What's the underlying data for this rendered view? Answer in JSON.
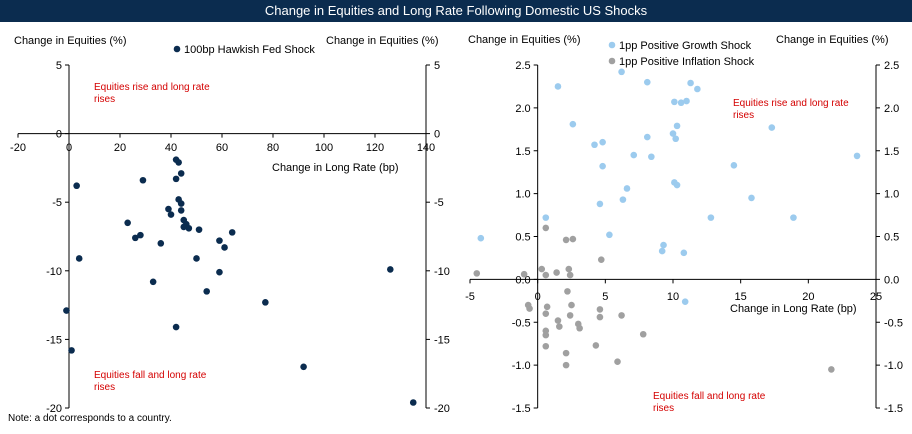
{
  "title": "Change in Equities and Long Rate Following Domestic US Shocks",
  "note": "Note: a dot corresponds to a country.",
  "colors": {
    "banner": "#0b2c4f",
    "hawkish": "#0b2c4f",
    "growth": "#9ccbee",
    "inflation": "#a0a0a0",
    "annotation": "#d40000"
  },
  "chart_data": [
    {
      "type": "scatter",
      "left_axis_title": "Change in Equities (%)",
      "right_axis_title": "Change in Equities (%)",
      "xlabel": "Change in Long Rate (bp)",
      "xlim": [
        -20,
        140
      ],
      "ylim": [
        -20,
        5
      ],
      "x_ticks": [
        -20,
        0,
        20,
        40,
        60,
        80,
        100,
        120,
        140
      ],
      "y_ticks": [
        5,
        0,
        -5,
        -10,
        -15,
        -20
      ],
      "annotations": [
        "Equities rise and long rate rises",
        "Equities fall and long rate rises"
      ],
      "series": [
        {
          "name": "100bp Hawkish Fed Shock",
          "color": "#0b2c4f",
          "points": [
            [
              42,
              -1.9
            ],
            [
              43,
              -2.1
            ],
            [
              44,
              -2.9
            ],
            [
              29,
              -3.4
            ],
            [
              42,
              -3.3
            ],
            [
              3,
              -3.8
            ],
            [
              43,
              -4.8
            ],
            [
              44,
              -5.1
            ],
            [
              44,
              -5.6
            ],
            [
              39,
              -5.5
            ],
            [
              40,
              -5.9
            ],
            [
              45,
              -6.3
            ],
            [
              46,
              -6.6
            ],
            [
              47,
              -6.9
            ],
            [
              45,
              -6.8
            ],
            [
              51,
              -7.0
            ],
            [
              23,
              -6.5
            ],
            [
              64,
              -7.2
            ],
            [
              28,
              -7.4
            ],
            [
              26,
              -7.6
            ],
            [
              59,
              -7.8
            ],
            [
              36,
              -8.0
            ],
            [
              61,
              -8.3
            ],
            [
              4,
              -9.1
            ],
            [
              50,
              -9.1
            ],
            [
              59,
              -10.1
            ],
            [
              33,
              -10.8
            ],
            [
              126,
              -9.9
            ],
            [
              54,
              -11.5
            ],
            [
              77,
              -12.3
            ],
            [
              -1,
              -12.9
            ],
            [
              42,
              -14.1
            ],
            [
              1,
              -15.8
            ],
            [
              92,
              -17.0
            ],
            [
              135,
              -19.6
            ]
          ]
        }
      ]
    },
    {
      "type": "scatter",
      "left_axis_title": "Change in Equities (%)",
      "right_axis_title": "Change in Equities (%)",
      "xlabel": "Change in Long Rate (bp)",
      "xlim": [
        -5,
        25
      ],
      "ylim": [
        -1.5,
        2.5
      ],
      "x_ticks": [
        -5,
        0,
        5,
        10,
        15,
        20,
        25
      ],
      "y_ticks": [
        "2.5",
        "2.0",
        "1.5",
        "1.0",
        "0.5",
        "0.0",
        "-0.5",
        "-1.0",
        "-1.5"
      ],
      "annotations": [
        "Equities rise and long rate rises",
        "Equities fall and long rate rises"
      ],
      "series": [
        {
          "name": "1pp Positive Growth Shock",
          "color": "#9ccbee",
          "points": [
            [
              -4.2,
              0.48
            ],
            [
              0.6,
              0.72
            ],
            [
              1.5,
              2.25
            ],
            [
              2.6,
              1.81
            ],
            [
              4.2,
              1.57
            ],
            [
              4.8,
              1.6
            ],
            [
              4.8,
              1.32
            ],
            [
              4.6,
              0.88
            ],
            [
              5.3,
              0.52
            ],
            [
              6.2,
              2.42
            ],
            [
              6.3,
              0.93
            ],
            [
              6.6,
              1.06
            ],
            [
              7.1,
              1.45
            ],
            [
              8.1,
              2.3
            ],
            [
              8.4,
              1.43
            ],
            [
              8.1,
              1.66
            ],
            [
              9.3,
              0.4
            ],
            [
              9.2,
              0.33
            ],
            [
              10.1,
              2.07
            ],
            [
              10.0,
              1.7
            ],
            [
              10.2,
              1.64
            ],
            [
              10.3,
              1.79
            ],
            [
              10.6,
              2.06
            ],
            [
              11.0,
              2.08
            ],
            [
              11.3,
              2.29
            ],
            [
              11.8,
              2.22
            ],
            [
              10.1,
              1.13
            ],
            [
              10.3,
              1.1
            ],
            [
              10.8,
              0.31
            ],
            [
              10.9,
              -0.26
            ],
            [
              12.8,
              0.72
            ],
            [
              14.5,
              1.33
            ],
            [
              15.8,
              0.95
            ],
            [
              17.3,
              1.77
            ],
            [
              18.9,
              0.72
            ],
            [
              23.6,
              1.44
            ]
          ]
        },
        {
          "name": "1pp Positive Inflation Shock",
          "color": "#a0a0a0",
          "points": [
            [
              -4.5,
              0.07
            ],
            [
              -1.0,
              0.06
            ],
            [
              0.3,
              0.12
            ],
            [
              0.6,
              0.05
            ],
            [
              0.6,
              0.6
            ],
            [
              1.4,
              0.08
            ],
            [
              2.1,
              0.46
            ],
            [
              2.6,
              0.47
            ],
            [
              2.3,
              0.12
            ],
            [
              2.4,
              0.05
            ],
            [
              2.2,
              -0.14
            ],
            [
              4.7,
              0.23
            ],
            [
              -0.7,
              -0.3
            ],
            [
              -0.6,
              -0.34
            ],
            [
              0.7,
              -0.32
            ],
            [
              0.6,
              -0.4
            ],
            [
              0.6,
              -0.6
            ],
            [
              0.6,
              -0.65
            ],
            [
              1.6,
              -0.55
            ],
            [
              1.5,
              -0.48
            ],
            [
              2.4,
              -0.42
            ],
            [
              2.5,
              -0.3
            ],
            [
              3.0,
              -0.52
            ],
            [
              3.1,
              -0.57
            ],
            [
              4.6,
              -0.35
            ],
            [
              4.6,
              -0.44
            ],
            [
              6.2,
              -0.42
            ],
            [
              7.8,
              -0.64
            ],
            [
              4.3,
              -0.77
            ],
            [
              5.9,
              -0.96
            ],
            [
              2.1,
              -0.86
            ],
            [
              2.1,
              -1.0
            ],
            [
              0.6,
              -0.78
            ],
            [
              21.7,
              -1.05
            ]
          ]
        }
      ]
    }
  ]
}
